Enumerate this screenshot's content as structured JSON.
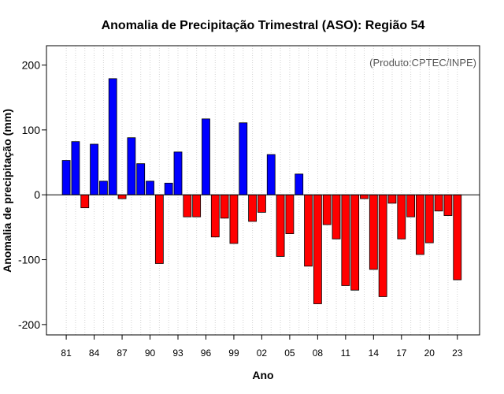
{
  "chart_data": {
    "type": "bar",
    "title": "Anomalia de Precipitação Trimestral (ASO): Região 54",
    "xlabel": "Ano",
    "ylabel": "Anomalia de precipitação (mm)",
    "credit": "(Produto:CPTEC/INPE)",
    "ylim": [
      -220,
      230
    ],
    "yticks": [
      -200,
      -100,
      0,
      100,
      200
    ],
    "ytick_labels": [
      "-200",
      "-100",
      "0",
      "100",
      "200"
    ],
    "x_tick_labels": [
      "81",
      "84",
      "87",
      "90",
      "93",
      "96",
      "99",
      "02",
      "05",
      "08",
      "11",
      "14",
      "17",
      "20",
      "23"
    ],
    "years": [
      1981,
      1982,
      1983,
      1984,
      1985,
      1986,
      1987,
      1988,
      1989,
      1990,
      1991,
      1992,
      1993,
      1994,
      1995,
      1996,
      1997,
      1998,
      1999,
      2000,
      2001,
      2002,
      2003,
      2004,
      2005,
      2006,
      2007,
      2008,
      2009,
      2010,
      2011,
      2012,
      2013,
      2014,
      2015,
      2016,
      2017,
      2018,
      2019,
      2020,
      2021,
      2022,
      2023
    ],
    "values": [
      53,
      82,
      -20,
      78,
      21,
      179,
      -6,
      88,
      48,
      21,
      -106,
      18,
      66,
      -34,
      -34,
      117,
      -65,
      -36,
      -75,
      111,
      -41,
      -27,
      62,
      -95,
      -60,
      32,
      -110,
      -168,
      -46,
      -68,
      -140,
      -147,
      -6,
      -115,
      -157,
      -13,
      -68,
      -34,
      -92,
      -74,
      -25,
      -32,
      -131
    ],
    "colors": {
      "positive": "#0000ff",
      "negative": "#ff0000",
      "grid": "#d3d3d3",
      "zero_line": "#000000"
    },
    "grid": true
  }
}
